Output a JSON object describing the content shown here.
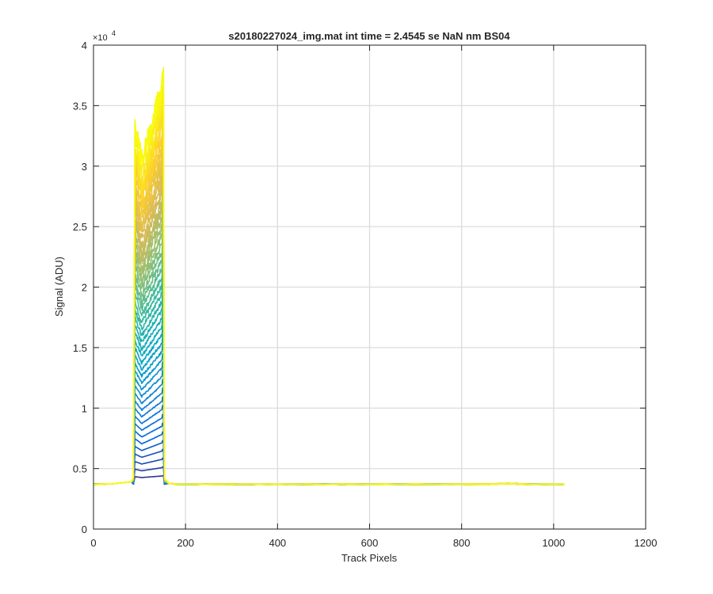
{
  "chart_data": {
    "type": "line",
    "title": "s20180227024_img.mat int time = 2.4545 se  NaN nm BS04",
    "xlabel": "Track Pixels",
    "ylabel": "Signal (ADU)",
    "exponent_label": "×10",
    "exponent_power": "4",
    "xlim": [
      0,
      1200
    ],
    "ylim": [
      0,
      40000
    ],
    "x_ticks": [
      0,
      200,
      400,
      600,
      800,
      1000,
      1200
    ],
    "x_tick_labels": [
      "0",
      "200",
      "400",
      "600",
      "800",
      "1000",
      "1200"
    ],
    "y_ticks": [
      0,
      5000,
      10000,
      15000,
      20000,
      25000,
      30000,
      35000,
      40000
    ],
    "y_tick_labels": [
      "0",
      "0.5",
      "1",
      "1.5",
      "2",
      "2.5",
      "3",
      "3.5",
      "4"
    ],
    "grid": true,
    "colormap": [
      "#352a87",
      "#0363e1",
      "#1485d4",
      "#06a7c6",
      "#38b99e",
      "#92bf73",
      "#d9ba56",
      "#fcce2e",
      "#f9fb0e"
    ],
    "baseline": 3700,
    "n_tracks": 48,
    "peak_region": {
      "x_start": 85,
      "x_end": 152,
      "rise_start": 87,
      "rise_end": 90,
      "left_spike": 33800,
      "dip": 30500,
      "right_spike": 38300
    },
    "x_max_data": 1024
  }
}
